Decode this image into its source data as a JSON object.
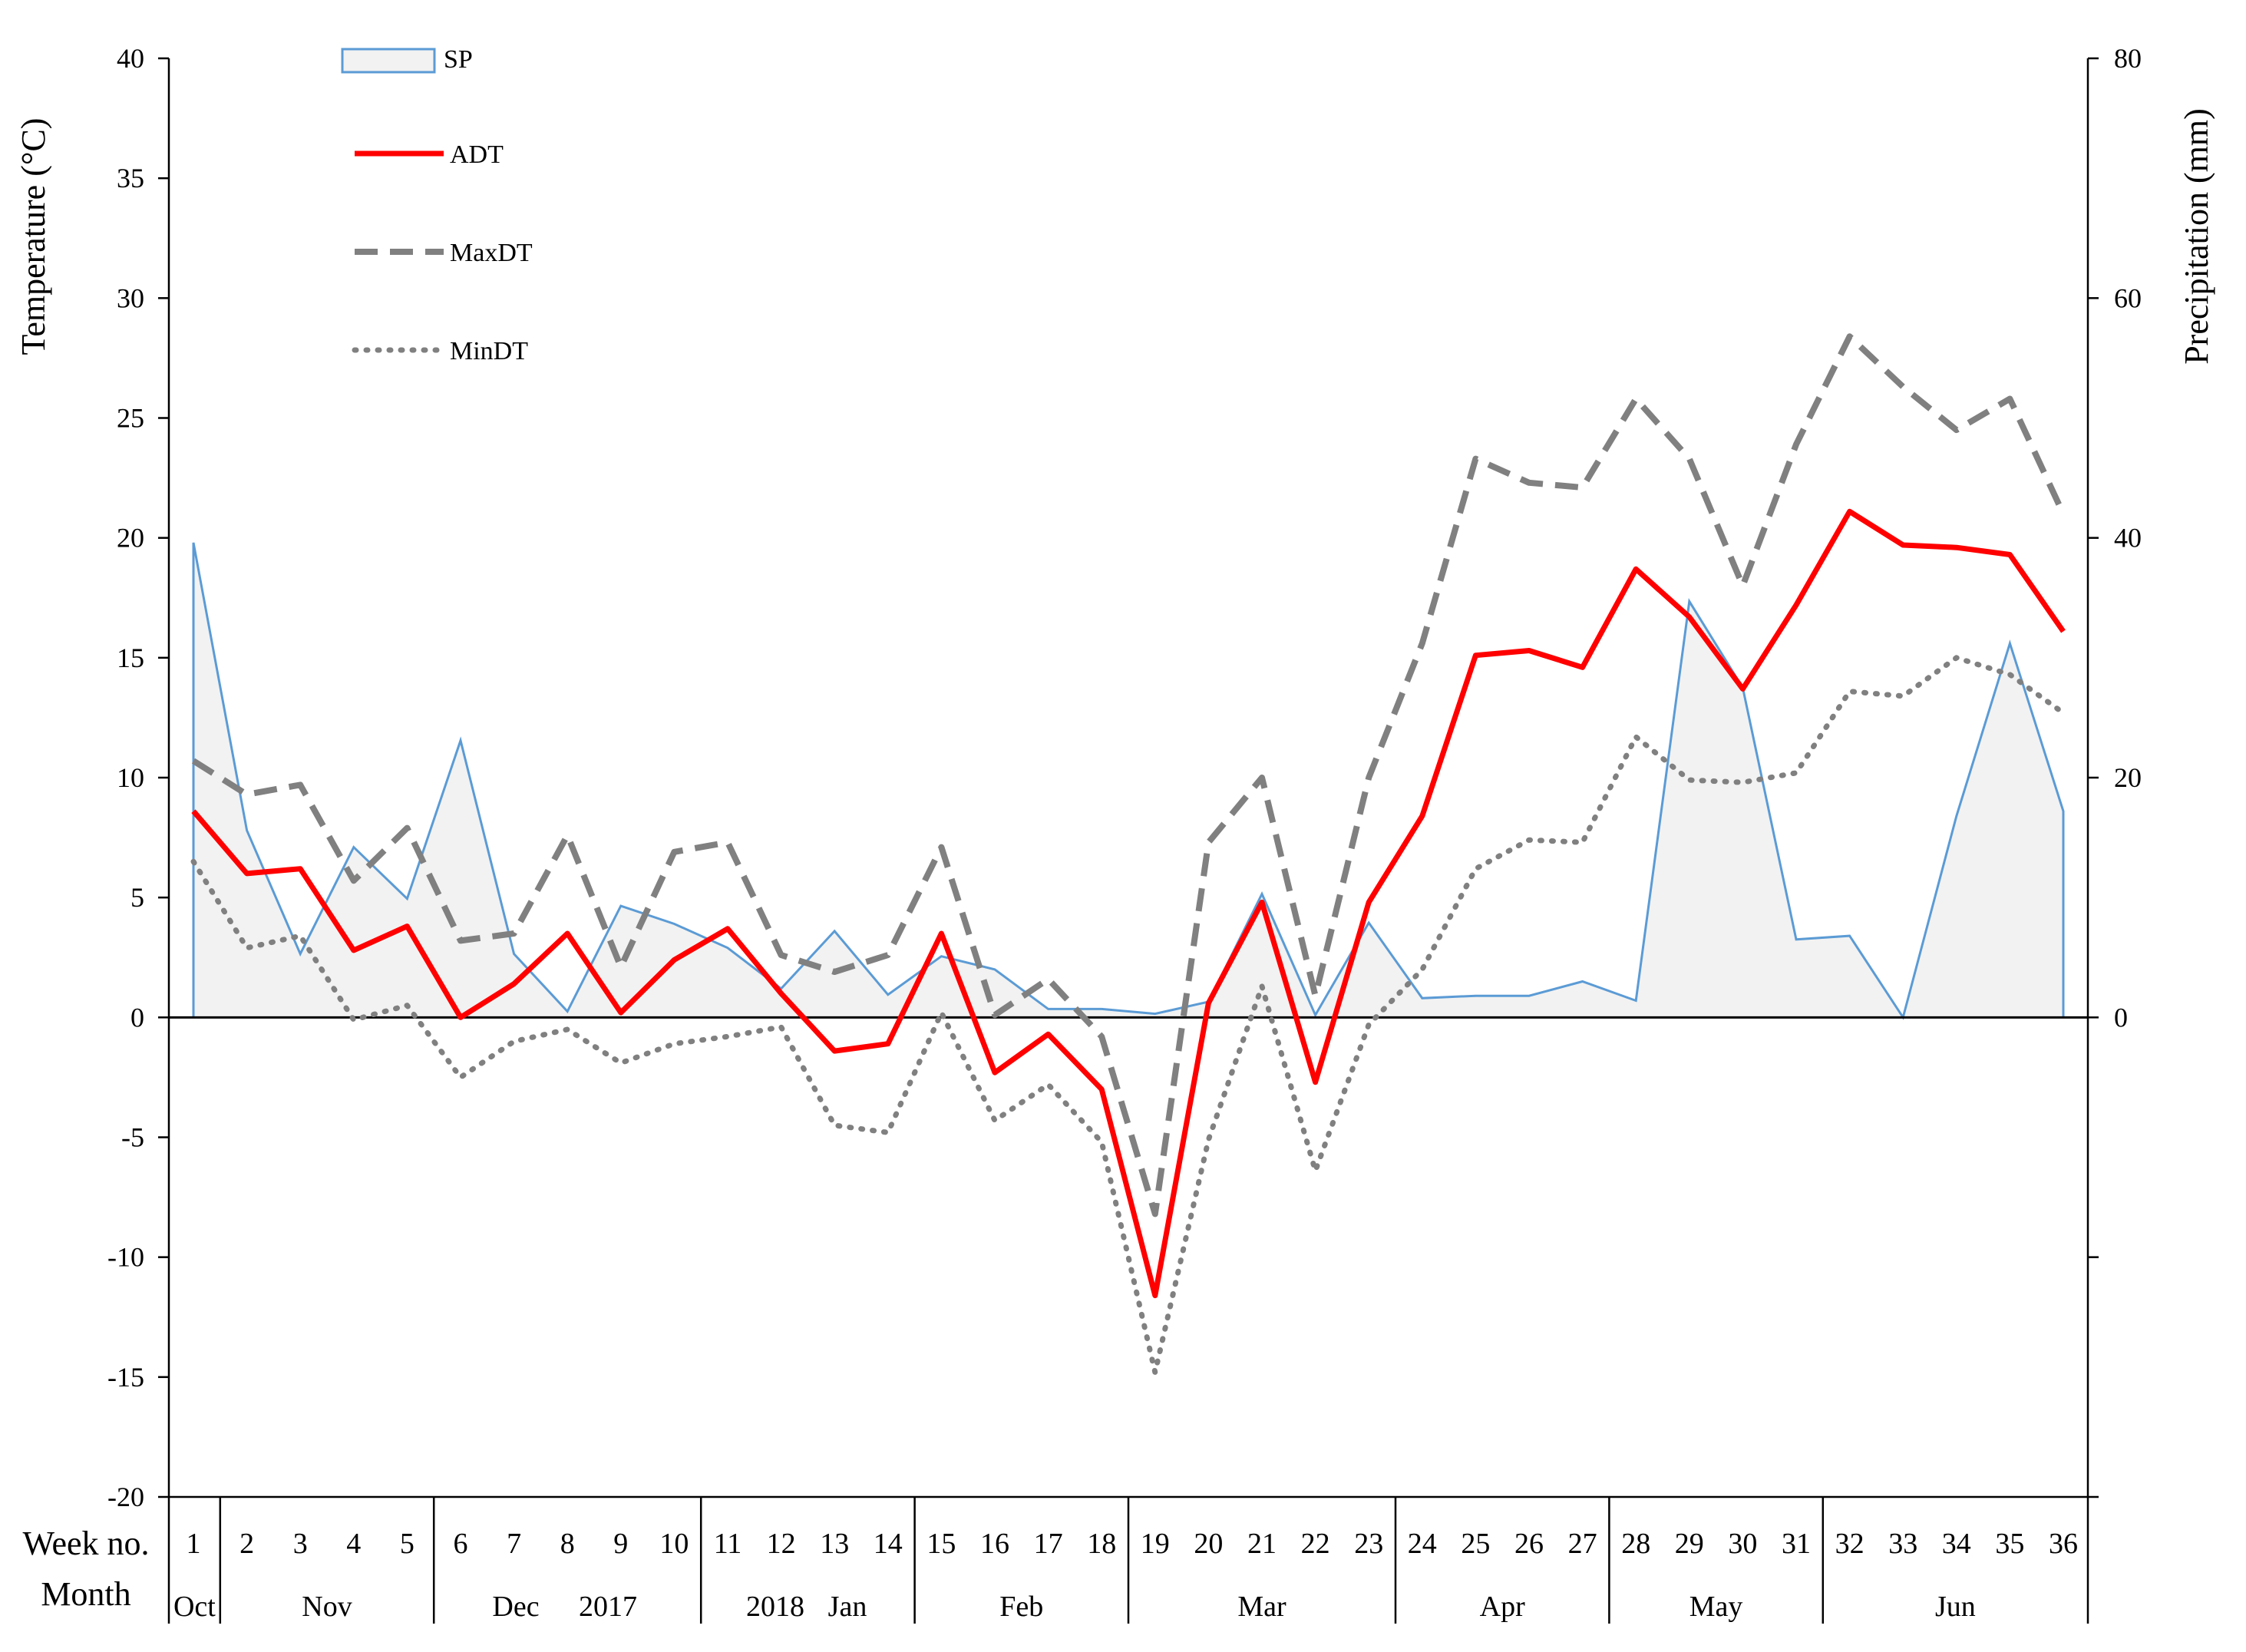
{
  "chart_data": {
    "type": "line",
    "title": "",
    "ylabel_left": "Temperature (°C)",
    "ylabel_right": "Precipitation (mm)",
    "ylim_left": [
      -20,
      40
    ],
    "ylim_right": [
      -40,
      80
    ],
    "yticks_left": [
      "40",
      "35",
      "30",
      "25",
      "20",
      "15",
      "10",
      "5",
      "0",
      "-5",
      "-10",
      "-15",
      "-20"
    ],
    "yticks_right": [
      "80",
      "60",
      "40",
      "20",
      "0"
    ],
    "row_labels": {
      "week": "Week no.",
      "month": "Month"
    },
    "x": [
      "1",
      "2",
      "3",
      "4",
      "5",
      "6",
      "7",
      "8",
      "9",
      "10",
      "11",
      "12",
      "13",
      "14",
      "15",
      "16",
      "17",
      "18",
      "19",
      "20",
      "21",
      "22",
      "23",
      "24",
      "25",
      "26",
      "27",
      "28",
      "29",
      "30",
      "31",
      "32",
      "33",
      "34",
      "35",
      "36"
    ],
    "months": [
      {
        "label": "Oct",
        "weeks": [
          1,
          1
        ]
      },
      {
        "label": "Nov",
        "weeks": [
          2,
          5
        ]
      },
      {
        "label": "Dec",
        "weeks": [
          6,
          10
        ]
      },
      {
        "label": "Jan",
        "weeks": [
          11,
          14
        ]
      },
      {
        "label": "Feb",
        "weeks": [
          15,
          18
        ]
      },
      {
        "label": "Mar",
        "weeks": [
          19,
          23
        ]
      },
      {
        "label": "Apr",
        "weeks": [
          24,
          27
        ]
      },
      {
        "label": "May",
        "weeks": [
          28,
          31
        ]
      },
      {
        "label": "Jun",
        "weeks": [
          32,
          36
        ]
      }
    ],
    "year_labels": [
      "2017",
      "2018"
    ],
    "legend_position": "top-left",
    "series": [
      {
        "name": "SP",
        "kind": "area",
        "axis": "right",
        "color": "#5b9bd5",
        "fill": "#f2f2f2",
        "values": [
          39.6,
          15.6,
          5.3,
          14.2,
          9.9,
          23.1,
          5.3,
          0.5,
          9.3,
          7.8,
          5.8,
          2.4,
          7.2,
          1.9,
          5.1,
          4.0,
          0.7,
          0.7,
          0.3,
          1.3,
          10.3,
          0.2,
          7.9,
          1.6,
          1.8,
          1.8,
          3.0,
          1.4,
          34.7,
          27.5,
          6.5,
          6.8,
          0.0,
          16.8,
          31.2,
          17.2
        ]
      },
      {
        "name": "ADT",
        "kind": "line",
        "axis": "left",
        "color": "#ff0000",
        "style": "solid",
        "values": [
          8.6,
          6.0,
          6.2,
          2.8,
          3.8,
          0.0,
          1.4,
          3.5,
          0.2,
          2.4,
          3.7,
          1.0,
          -1.4,
          -1.1,
          3.5,
          -2.3,
          -0.7,
          -3.0,
          -11.6,
          0.6,
          4.8,
          -2.7,
          4.8,
          8.4,
          15.1,
          15.3,
          14.6,
          18.7,
          16.7,
          13.7,
          17.2,
          21.1,
          19.7,
          19.6,
          19.3,
          16.1
        ]
      },
      {
        "name": "MaxDT",
        "kind": "line",
        "axis": "left",
        "color": "#808080",
        "style": "dashed",
        "values": [
          10.7,
          9.3,
          9.7,
          5.7,
          7.9,
          3.2,
          3.5,
          7.6,
          2.1,
          6.9,
          7.3,
          2.6,
          1.9,
          2.6,
          7.1,
          0.1,
          1.6,
          -0.8,
          -8.2,
          7.3,
          10.0,
          0.9,
          10.0,
          15.6,
          23.3,
          22.3,
          22.1,
          25.8,
          23.3,
          18.0,
          23.9,
          28.4,
          26.3,
          24.5,
          25.8,
          21.0
        ]
      },
      {
        "name": "MinDT",
        "kind": "line",
        "axis": "left",
        "color": "#808080",
        "style": "dotted",
        "values": [
          6.5,
          2.9,
          3.4,
          -0.1,
          0.5,
          -2.5,
          -1.0,
          -0.5,
          -1.9,
          -1.1,
          -0.8,
          -0.4,
          -4.5,
          -4.8,
          0.2,
          -4.3,
          -2.8,
          -5.2,
          -14.8,
          -5.1,
          1.3,
          -6.4,
          -0.3,
          2.0,
          6.2,
          7.4,
          7.3,
          11.7,
          9.9,
          9.8,
          10.2,
          13.6,
          13.4,
          15.0,
          14.3,
          12.7
        ]
      }
    ]
  }
}
